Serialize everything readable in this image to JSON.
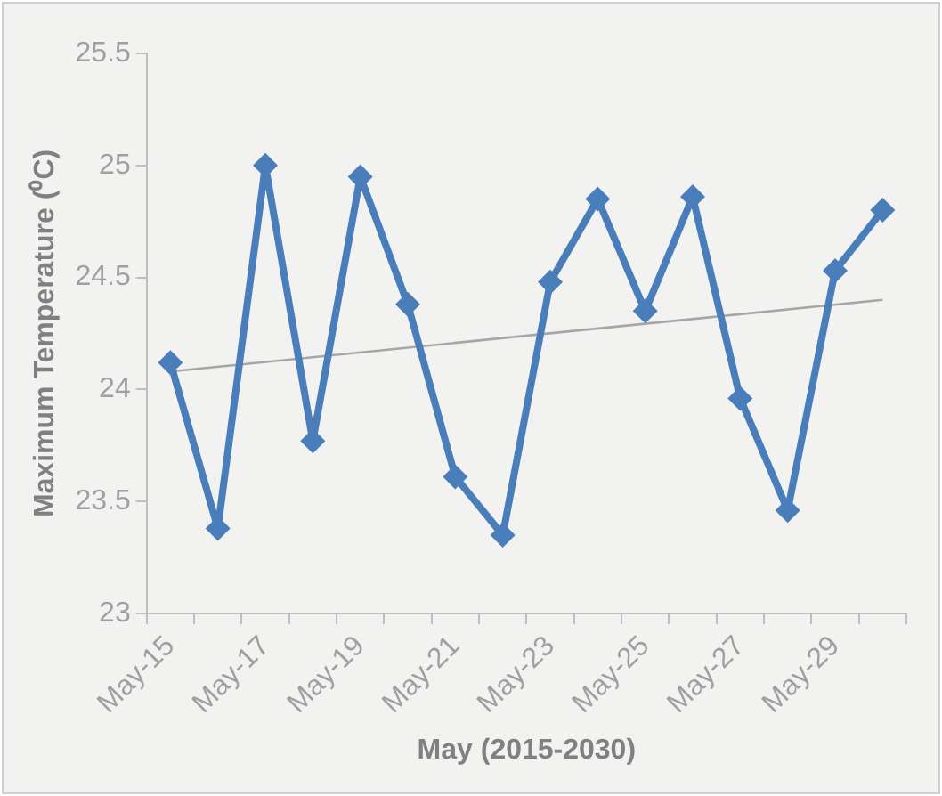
{
  "chart_data": {
    "type": "line",
    "xlabel": "May (2015-2030)",
    "ylabel": "Maximum Temperature (⁰C)",
    "categories": [
      "May-15",
      null,
      "May-17",
      null,
      "May-19",
      null,
      "May-21",
      null,
      "May-23",
      null,
      "May-25",
      null,
      "May-27",
      null,
      "May-29",
      null
    ],
    "series": [
      {
        "color": "#4a7ebb",
        "marker": "diamond",
        "values": [
          24.12,
          23.38,
          25.0,
          23.77,
          24.95,
          24.38,
          23.61,
          23.35,
          24.48,
          24.85,
          24.35,
          24.86,
          23.96,
          23.46,
          24.53,
          24.8
        ]
      },
      {
        "type": "line",
        "color": "#a6a6a6",
        "marker": "none",
        "values": [
          24.08,
          null,
          null,
          null,
          null,
          null,
          null,
          null,
          null,
          null,
          null,
          null,
          null,
          null,
          null,
          24.4
        ]
      }
    ],
    "ylim": [
      23,
      25.5
    ],
    "yticks": [
      23,
      23.5,
      24,
      24.5,
      25,
      25.5
    ],
    "grid": false,
    "legend": false
  }
}
